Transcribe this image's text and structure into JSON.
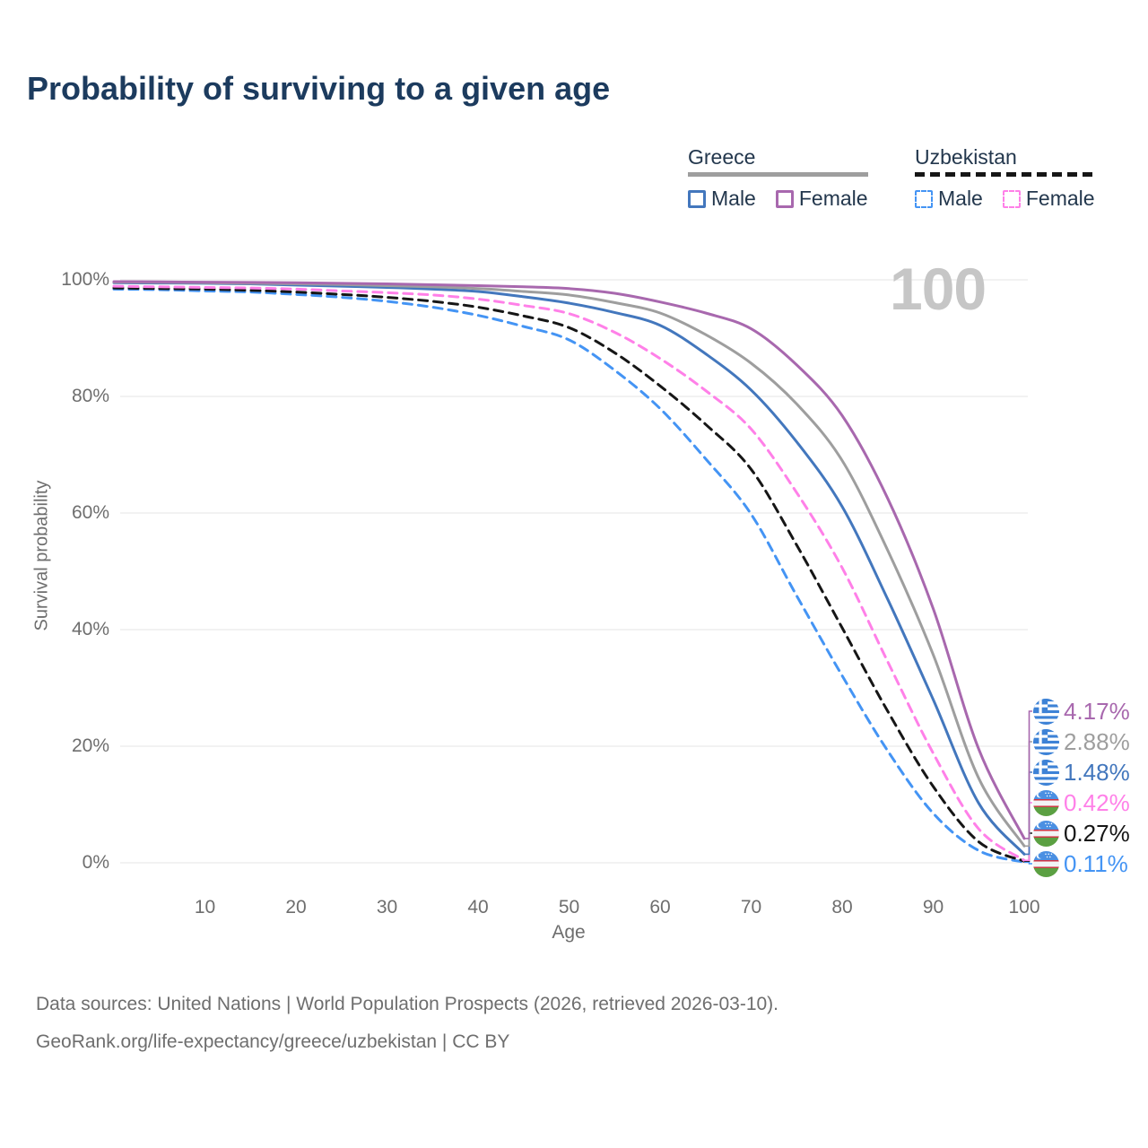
{
  "title": "Probability of surviving to a given age",
  "age_watermark": "100",
  "legend": {
    "groups": [
      {
        "label": "Greece",
        "line_style": "solid",
        "line_color": "#9e9e9e",
        "items": [
          {
            "label": "Male",
            "color": "#4377bd",
            "dashed": false
          },
          {
            "label": "Female",
            "color": "#a868ae",
            "dashed": false
          }
        ]
      },
      {
        "label": "Uzbekistan",
        "line_style": "dashed",
        "line_color": "#161616",
        "items": [
          {
            "label": "Male",
            "color": "#4494f4",
            "dashed": true
          },
          {
            "label": "Female",
            "color": "#ff80e8",
            "dashed": true
          }
        ]
      }
    ]
  },
  "chart_data": {
    "type": "line",
    "title": "Probability of surviving to a given age",
    "xlabel": "Age",
    "ylabel": "Survival probability",
    "xlim": [
      0,
      100
    ],
    "ylim": [
      0,
      100
    ],
    "grid": "horizontal-only",
    "xticks": [
      10,
      20,
      30,
      40,
      50,
      60,
      70,
      80,
      90,
      100
    ],
    "yticks": [
      {
        "value": 0,
        "label": "0%"
      },
      {
        "value": 20,
        "label": "20%"
      },
      {
        "value": 40,
        "label": "40%"
      },
      {
        "value": 60,
        "label": "60%"
      },
      {
        "value": 80,
        "label": "80%"
      },
      {
        "value": 100,
        "label": "100%"
      }
    ],
    "x": [
      0,
      5,
      10,
      15,
      20,
      25,
      30,
      35,
      40,
      45,
      50,
      55,
      60,
      65,
      70,
      75,
      80,
      85,
      90,
      95,
      100
    ],
    "series": [
      {
        "name": "Uzbekistan Male",
        "country": "uzbekistan",
        "sex": "male",
        "color": "#4494f4",
        "dashed": true,
        "end_label": "0.11%",
        "values": [
          98.4,
          98.3,
          98.1,
          97.9,
          97.5,
          97.0,
          96.3,
          95.3,
          93.9,
          92.0,
          89.7,
          84.5,
          77.9,
          69.3,
          59.8,
          45.8,
          32.1,
          19.2,
          8.5,
          2.1,
          0.11
        ]
      },
      {
        "name": "Uzbekistan",
        "country": "uzbekistan",
        "sex": "both",
        "color": "#161616",
        "dashed": true,
        "end_label": "0.27%",
        "values": [
          98.6,
          98.5,
          98.4,
          98.2,
          97.9,
          97.5,
          97.0,
          96.3,
          95.3,
          93.8,
          91.8,
          87.5,
          81.8,
          75.2,
          67.5,
          54.5,
          40.3,
          26.0,
          13.1,
          3.6,
          0.27
        ]
      },
      {
        "name": "Uzbekistan Female",
        "country": "uzbekistan",
        "sex": "female",
        "color": "#ff80e8",
        "dashed": true,
        "end_label": "0.42%",
        "values": [
          98.9,
          98.8,
          98.7,
          98.6,
          98.4,
          98.1,
          97.8,
          97.4,
          96.7,
          95.6,
          94.2,
          91.0,
          86.5,
          81.0,
          74.4,
          63.5,
          50.6,
          34.5,
          18.8,
          5.8,
          0.42
        ]
      },
      {
        "name": "Greece Male",
        "country": "greece",
        "sex": "male",
        "color": "#4377bd",
        "dashed": false,
        "end_label": "1.48%",
        "values": [
          99.5,
          99.45,
          99.4,
          99.3,
          99.1,
          98.9,
          98.7,
          98.4,
          98.0,
          97.1,
          96.0,
          94.4,
          92.2,
          87.3,
          81.1,
          72.2,
          61.1,
          45.2,
          28.0,
          10.2,
          1.48
        ]
      },
      {
        "name": "Greece",
        "country": "greece",
        "sex": "both",
        "color": "#9e9e9e",
        "dashed": false,
        "end_label": "2.88%",
        "values": [
          99.6,
          99.55,
          99.5,
          99.4,
          99.3,
          99.2,
          99.0,
          98.8,
          98.5,
          98.0,
          97.4,
          96.1,
          94.3,
          90.6,
          85.7,
          78.7,
          69.0,
          53.6,
          35.7,
          14.5,
          2.88
        ]
      },
      {
        "name": "Greece Female",
        "country": "greece",
        "sex": "female",
        "color": "#a868ae",
        "dashed": false,
        "end_label": "4.17%",
        "values": [
          99.7,
          99.65,
          99.6,
          99.55,
          99.5,
          99.4,
          99.3,
          99.15,
          99.0,
          98.8,
          98.5,
          97.7,
          96.2,
          94.3,
          91.6,
          85.4,
          76.7,
          62.5,
          43.6,
          19.5,
          4.17
        ]
      }
    ]
  },
  "footer": {
    "line1": "Data sources: United Nations | World Population Prospects (2026, retrieved 2026-03-10).",
    "line2": "GeoRank.org/life-expectancy/greece/uzbekistan | CC BY"
  }
}
